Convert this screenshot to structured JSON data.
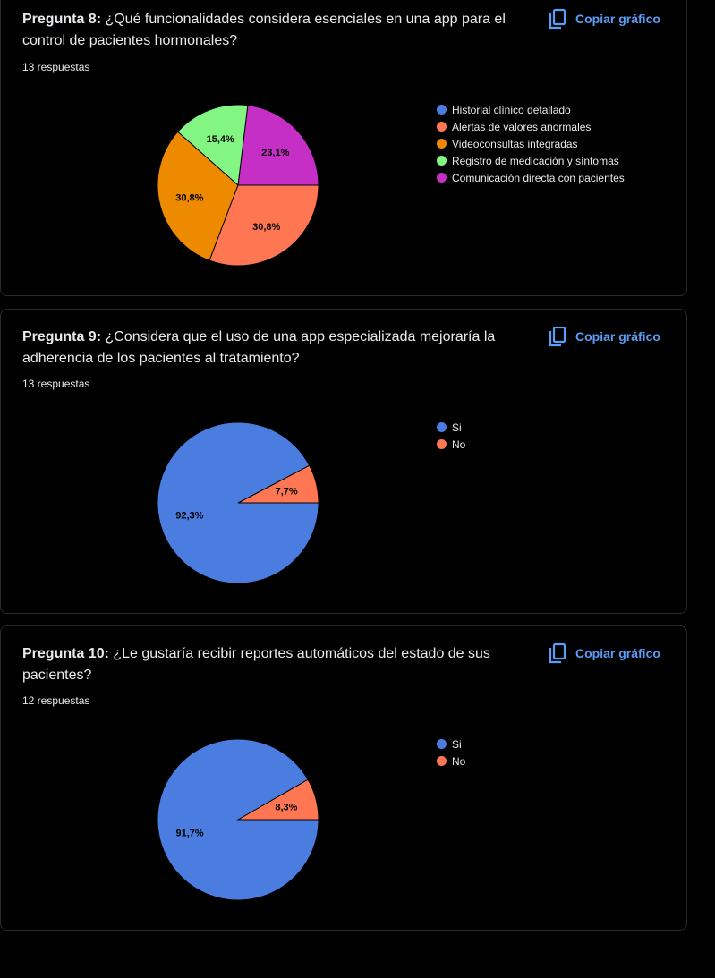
{
  "copy_label": "Copiar gráfico",
  "questions": [
    {
      "prefix": "Pregunta 8:",
      "text": " ¿Qué funcionalidades considera esenciales en una app para el control de pacientes hormonales?",
      "responses": "13 respuestas",
      "chart_data": {
        "type": "pie",
        "labels": [
          "Historial clínico detallado",
          "Alertas de valores anormales",
          "Videoconsultas integradas",
          "Registro de medicación y síntomas",
          "Comunicación directa con pacientes"
        ],
        "values": [
          0,
          30.8,
          30.8,
          15.4,
          23.1
        ],
        "display": [
          "",
          "30,8%",
          "30,8%",
          "15,4%",
          "23,1%"
        ],
        "colors": [
          "#4a7ddf",
          "#ff7752",
          "#ee8a00",
          "#82f582",
          "#c52fc6"
        ],
        "legend": "right"
      }
    },
    {
      "prefix": "Pregunta 9:",
      "text": " ¿Considera que el uso de una app especializada mejoraría la adherencia de los pacientes al tratamiento?",
      "responses": "13 respuestas",
      "chart_data": {
        "type": "pie",
        "labels": [
          "Si",
          "No"
        ],
        "values": [
          92.3,
          7.7
        ],
        "display": [
          "92,3%",
          "7,7%"
        ],
        "colors": [
          "#4a7ddf",
          "#ff7752"
        ],
        "legend": "right"
      }
    },
    {
      "prefix": "Pregunta 10:",
      "text": " ¿Le gustaría recibir reportes automáticos del estado de sus pacientes?",
      "responses": "12 respuestas",
      "chart_data": {
        "type": "pie",
        "labels": [
          "Si",
          "No"
        ],
        "values": [
          91.7,
          8.3
        ],
        "display": [
          "91,7%",
          "8,3%"
        ],
        "colors": [
          "#4a7ddf",
          "#ff7752"
        ],
        "legend": "right"
      }
    }
  ]
}
